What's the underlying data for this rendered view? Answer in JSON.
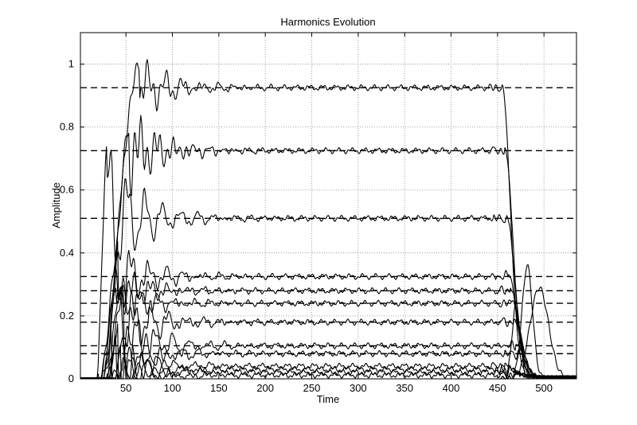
{
  "chart_data": {
    "type": "line",
    "title": "Harmonics Evolution",
    "xlabel": "Time",
    "ylabel": "Amplitude",
    "xlim": [
      1,
      535
    ],
    "ylim": [
      0,
      1.1
    ],
    "xticks": [
      50,
      100,
      150,
      200,
      250,
      300,
      350,
      400,
      450,
      500
    ],
    "yticks": [
      0,
      0.2,
      0.4,
      0.6,
      0.8,
      1
    ],
    "grid": true,
    "legend": "none",
    "reference_levels": [
      0.925,
      0.725,
      0.51,
      0.325,
      0.28,
      0.24,
      0.18,
      0.105,
      0.08
    ],
    "series": [
      {
        "level": 0.925,
        "peak": 1.0,
        "rise": 20,
        "risedur": 45,
        "osc": 0.05,
        "fall": 455
      },
      {
        "level": 0.725,
        "peak": 0.8,
        "rise": 26,
        "risedur": 28,
        "osc": 0.09,
        "fall": 458
      },
      {
        "level": 0.51,
        "peak": 0.73,
        "rise": 18,
        "risedur": 12,
        "osc": 0.07,
        "fall": 460
      },
      {
        "level": 0.325,
        "peak": 0.42,
        "rise": 22,
        "risedur": 20,
        "osc": 0.05,
        "fall": 462
      },
      {
        "level": 0.28,
        "peak": 0.34,
        "rise": 24,
        "risedur": 16,
        "osc": 0.05,
        "fall": 464
      },
      {
        "level": 0.24,
        "peak": 0.31,
        "rise": 26,
        "risedur": 14,
        "osc": 0.04,
        "fall": 466
      },
      {
        "level": 0.18,
        "peak": 0.28,
        "rise": 28,
        "risedur": 20,
        "osc": 0.05,
        "fall": 468
      },
      {
        "level": 0.105,
        "peak": 0.26,
        "rise": 30,
        "risedur": 12,
        "osc": 0.04,
        "fall": 470
      },
      {
        "level": 0.08,
        "peak": 0.18,
        "rise": 32,
        "risedur": 10,
        "osc": 0.03,
        "fall": 472
      },
      {
        "level": 0.04,
        "peak": 0.15,
        "rise": 25,
        "risedur": 10,
        "osc": 0.02,
        "fall": 458
      },
      {
        "level": 0.03,
        "peak": 0.12,
        "rise": 30,
        "risedur": 10,
        "osc": 0.02,
        "fall": 462
      },
      {
        "level": 0.02,
        "peak": 0.09,
        "rise": 35,
        "risedur": 10,
        "osc": 0.015,
        "fall": 466
      },
      {
        "level": 0.012,
        "peak": 0.06,
        "rise": 40,
        "risedur": 10,
        "osc": 0.01,
        "fall": 470
      }
    ],
    "tail_bumps": [
      {
        "center": 495,
        "height": 0.29,
        "width": 14
      },
      {
        "center": 482,
        "height": 0.36,
        "width": 8
      },
      {
        "center": 470,
        "height": 0.24,
        "width": 6
      }
    ]
  }
}
